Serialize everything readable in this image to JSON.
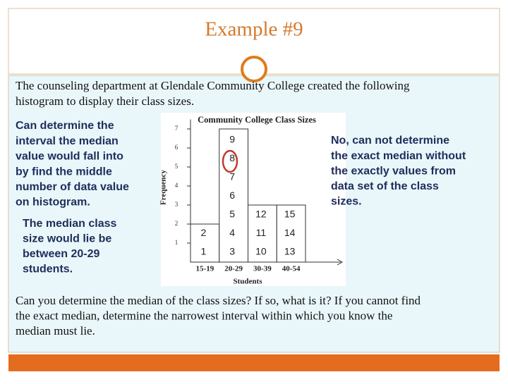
{
  "header": {
    "title": "Example #9"
  },
  "intro": {
    "lines": [
      "The counseling department at Glendale Community College created the following",
      "histogram to display their class sizes."
    ]
  },
  "left_note": {
    "lines": [
      "Can determine the",
      "interval the median",
      "value would fall into",
      "by find the middle",
      "number of data value",
      "on histogram."
    ]
  },
  "left_conclusion": {
    "lines": [
      "The median class",
      "size would lie be",
      "between 20-29",
      "students."
    ]
  },
  "right_note": {
    "lines": [
      "No, can not determine",
      "the exact median without",
      "the exactly values from",
      "data set of the class",
      "sizes."
    ]
  },
  "question": {
    "lines": [
      "Can you determine the median of the class sizes? If so, what is it? If you cannot find",
      "the exact median, determine the narrowest interval within which you know the",
      "median must lie."
    ]
  },
  "chart_data": {
    "type": "bar",
    "title": "Community College Class Sizes",
    "xlabel": "Students",
    "ylabel": "Frequency",
    "categories": [
      "15-19",
      "20-29",
      "30-39",
      "40-54"
    ],
    "values": [
      2,
      7,
      3,
      3
    ],
    "item_labels": [
      [
        1,
        2
      ],
      [
        3,
        4,
        5,
        6,
        7,
        8,
        9
      ],
      [
        10,
        11,
        12
      ],
      [
        13,
        14,
        15
      ]
    ],
    "color": "#ffffff",
    "edgecolor": "#333333",
    "ylim": [
      0,
      7.5
    ],
    "yticks": [
      1,
      2,
      3,
      4,
      5,
      6,
      7
    ]
  }
}
